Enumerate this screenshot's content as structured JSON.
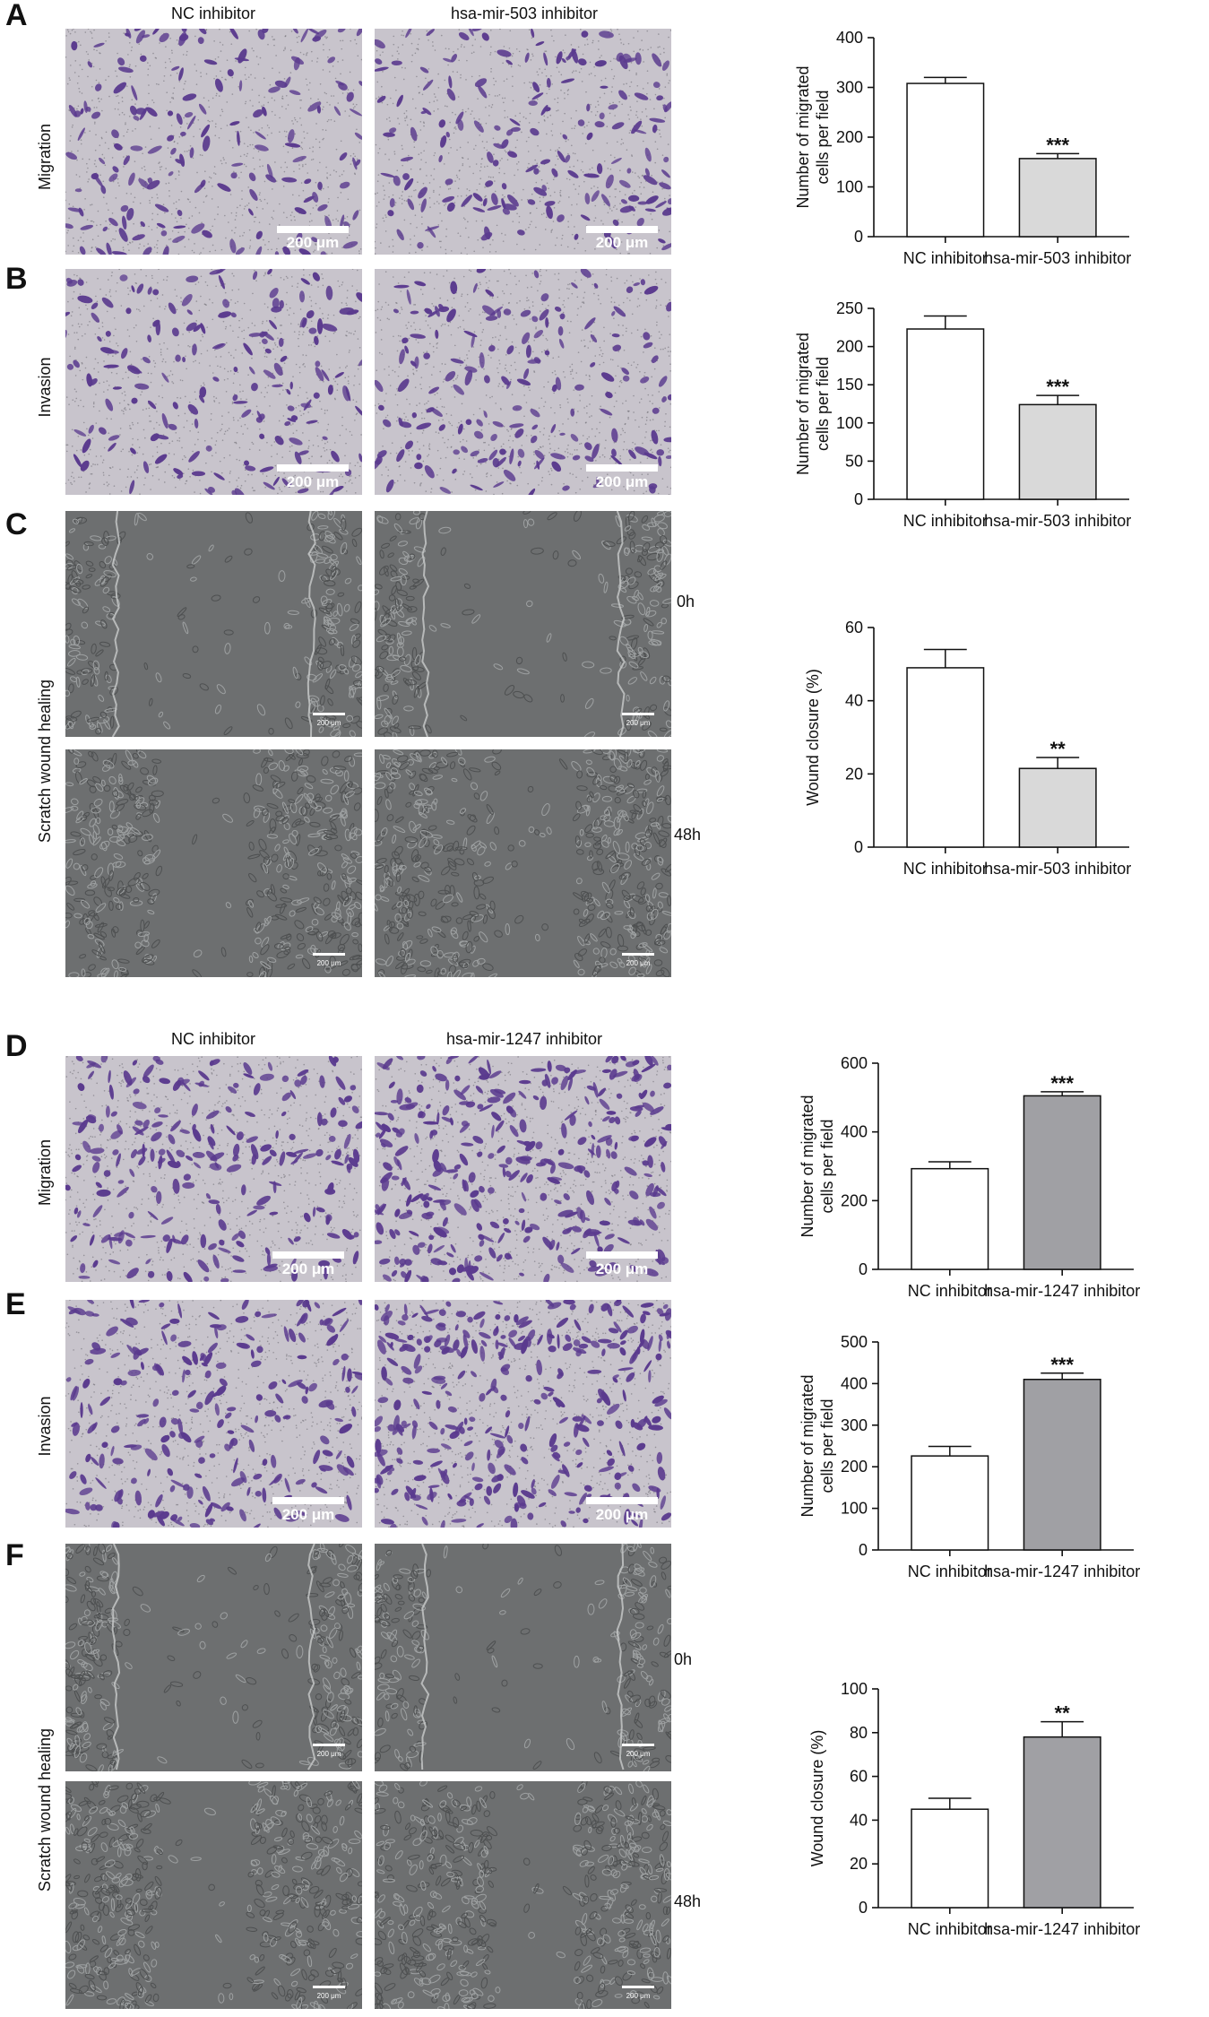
{
  "figure": {
    "top": {
      "letters": [
        "A",
        "B",
        "C"
      ],
      "col_heads": [
        "NC inhibitor",
        "hsa-mir-503 inhibitor"
      ],
      "row_labels": [
        "Migration",
        "Invasion",
        "Scratch wound healing"
      ],
      "scale": "200 μm",
      "scale_small": "200 μm",
      "times": [
        "0h",
        "48h"
      ]
    },
    "bottom": {
      "letters": [
        "D",
        "E",
        "F"
      ],
      "col_heads": [
        "NC inhibitor",
        "hsa-mir-1247 inhibitor"
      ],
      "row_labels": [
        "Migration",
        "Invasion",
        "Scratch wound healing"
      ],
      "scale": "200 μm",
      "scale_small": "200 μm",
      "times": [
        "0h",
        "48h"
      ]
    }
  },
  "colors": {
    "stain": "#5a3a8e",
    "membrane": "#c8c4cc",
    "phase": "#6d6f70",
    "bar_white": "#ffffff",
    "bar_light": "#d9d9d9",
    "bar_dark": "#a0a0a4"
  },
  "chart_data": [
    {
      "type": "bar",
      "id": "A",
      "ylabel": [
        "Number of migrated",
        "cells per field"
      ],
      "ylim": [
        0,
        400
      ],
      "yticks": [
        0,
        100,
        200,
        300,
        400
      ],
      "categories": [
        "NC inhibitor",
        "hsa-mir-503 inhibitor"
      ],
      "values": [
        308,
        157
      ],
      "errors": [
        12,
        10
      ],
      "sig": [
        "",
        "***"
      ],
      "fills": [
        "white",
        "light"
      ]
    },
    {
      "type": "bar",
      "id": "B",
      "ylabel": [
        "Number of migrated",
        "cells per field"
      ],
      "ylim": [
        0,
        250
      ],
      "yticks": [
        0,
        50,
        100,
        150,
        200,
        250
      ],
      "categories": [
        "NC inhibitor",
        "hsa-mir-503 inhibitor"
      ],
      "values": [
        223,
        124
      ],
      "errors": [
        17,
        12
      ],
      "sig": [
        "",
        "***"
      ],
      "fills": [
        "white",
        "light"
      ]
    },
    {
      "type": "bar",
      "id": "C",
      "ylabel": [
        "Wound closure (%)"
      ],
      "ylim": [
        0,
        60
      ],
      "yticks": [
        0,
        20,
        40,
        60
      ],
      "categories": [
        "NC inhibitor",
        "hsa-mir-503 inhibitor"
      ],
      "values": [
        49,
        21.5
      ],
      "errors": [
        5,
        3
      ],
      "sig": [
        "",
        "**"
      ],
      "fills": [
        "white",
        "light"
      ]
    },
    {
      "type": "bar",
      "id": "D",
      "ylabel": [
        "Number of migrated",
        "cells per field"
      ],
      "ylim": [
        0,
        600
      ],
      "yticks": [
        0,
        200,
        400,
        600
      ],
      "categories": [
        "NC inhibitor",
        "hsa-mir-1247 inhibitor"
      ],
      "values": [
        293,
        505
      ],
      "errors": [
        20,
        12
      ],
      "sig": [
        "",
        "***"
      ],
      "fills": [
        "white",
        "dark"
      ]
    },
    {
      "type": "bar",
      "id": "E",
      "ylabel": [
        "Number of migrated",
        "cells per field"
      ],
      "ylim": [
        0,
        500
      ],
      "yticks": [
        0,
        100,
        200,
        300,
        400,
        500
      ],
      "categories": [
        "NC inhibitor",
        "hsa-mir-1247 inhibitor"
      ],
      "values": [
        226,
        410
      ],
      "errors": [
        23,
        15
      ],
      "sig": [
        "",
        "***"
      ],
      "fills": [
        "white",
        "dark"
      ]
    },
    {
      "type": "bar",
      "id": "F",
      "ylabel": [
        "Wound closure (%)"
      ],
      "ylim": [
        0,
        100
      ],
      "yticks": [
        0,
        20,
        40,
        60,
        80,
        100
      ],
      "categories": [
        "NC inhibitor",
        "hsa-mir-1247 inhibitor"
      ],
      "values": [
        45,
        78
      ],
      "errors": [
        5,
        7
      ],
      "sig": [
        "",
        "**"
      ],
      "fills": [
        "white",
        "dark"
      ]
    }
  ]
}
